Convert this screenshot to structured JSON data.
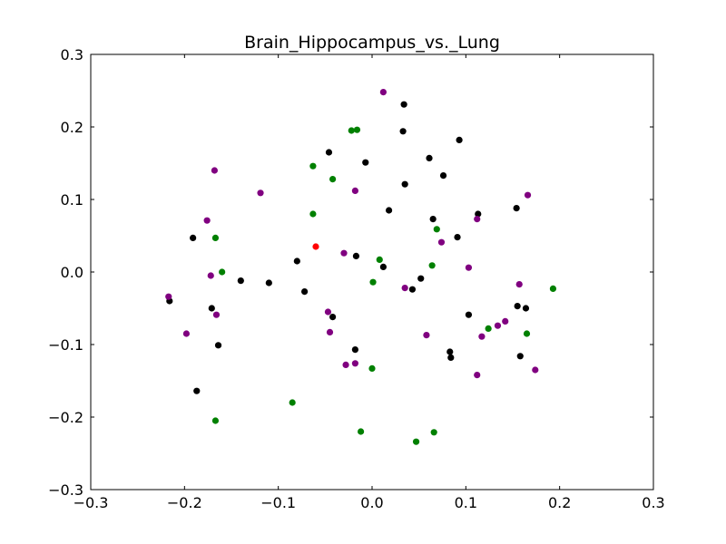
{
  "chart_data": {
    "type": "scatter",
    "title": "Brain_Hippocampus_vs._Lung",
    "xlabel": "",
    "ylabel": "",
    "xlim": [
      -0.3,
      0.3
    ],
    "ylim": [
      -0.3,
      0.3
    ],
    "xticks": [
      -0.3,
      -0.2,
      -0.1,
      0.0,
      0.1,
      0.2,
      0.3
    ],
    "yticks": [
      -0.3,
      -0.2,
      -0.1,
      0.0,
      0.1,
      0.2,
      0.3
    ],
    "xtick_labels": [
      "−0.3",
      "−0.2",
      "−0.1",
      "0.0",
      "0.1",
      "0.2",
      "0.3"
    ],
    "ytick_labels": [
      "−0.3",
      "−0.2",
      "−0.1",
      "0.0",
      "0.1",
      "0.2",
      "0.3"
    ],
    "grid": false,
    "legend": "none",
    "series": [
      {
        "color": "#000000",
        "points": [
          [
            0.034,
            0.231
          ],
          [
            0.033,
            0.194
          ],
          [
            0.093,
            0.182
          ],
          [
            -0.046,
            0.165
          ],
          [
            0.061,
            0.157
          ],
          [
            -0.007,
            0.151
          ],
          [
            0.076,
            0.133
          ],
          [
            0.035,
            0.121
          ],
          [
            0.018,
            0.085
          ],
          [
            0.113,
            0.08
          ],
          [
            0.154,
            0.088
          ],
          [
            0.065,
            0.073
          ],
          [
            -0.191,
            0.047
          ],
          [
            0.091,
            0.048
          ],
          [
            -0.017,
            0.022
          ],
          [
            -0.08,
            0.015
          ],
          [
            0.012,
            0.007
          ],
          [
            -0.14,
            -0.012
          ],
          [
            -0.11,
            -0.015
          ],
          [
            0.052,
            -0.009
          ],
          [
            0.043,
            -0.024
          ],
          [
            -0.072,
            -0.027
          ],
          [
            -0.216,
            -0.04
          ],
          [
            -0.171,
            -0.05
          ],
          [
            0.155,
            -0.047
          ],
          [
            0.164,
            -0.05
          ],
          [
            -0.042,
            -0.062
          ],
          [
            0.103,
            -0.059
          ],
          [
            -0.164,
            -0.101
          ],
          [
            -0.018,
            -0.107
          ],
          [
            0.083,
            -0.11
          ],
          [
            0.084,
            -0.118
          ],
          [
            0.158,
            -0.116
          ],
          [
            -0.187,
            -0.164
          ]
        ]
      },
      {
        "color": "#800080",
        "points": [
          [
            0.012,
            0.248
          ],
          [
            -0.168,
            0.14
          ],
          [
            -0.119,
            0.109
          ],
          [
            -0.018,
            0.112
          ],
          [
            0.166,
            0.106
          ],
          [
            -0.176,
            0.071
          ],
          [
            0.112,
            0.073
          ],
          [
            0.074,
            0.041
          ],
          [
            -0.03,
            0.026
          ],
          [
            -0.172,
            -0.005
          ],
          [
            0.103,
            0.006
          ],
          [
            0.157,
            -0.017
          ],
          [
            0.035,
            -0.022
          ],
          [
            -0.217,
            -0.034
          ],
          [
            -0.166,
            -0.059
          ],
          [
            -0.047,
            -0.055
          ],
          [
            0.142,
            -0.068
          ],
          [
            0.134,
            -0.074
          ],
          [
            -0.045,
            -0.083
          ],
          [
            -0.198,
            -0.085
          ],
          [
            0.058,
            -0.087
          ],
          [
            0.117,
            -0.089
          ],
          [
            -0.028,
            -0.128
          ],
          [
            -0.018,
            -0.126
          ],
          [
            0.174,
            -0.135
          ],
          [
            0.112,
            -0.142
          ]
        ]
      },
      {
        "color": "#008000",
        "points": [
          [
            -0.016,
            0.196
          ],
          [
            -0.022,
            0.195
          ],
          [
            -0.063,
            0.146
          ],
          [
            -0.042,
            0.128
          ],
          [
            -0.063,
            0.08
          ],
          [
            0.069,
            0.059
          ],
          [
            -0.167,
            0.047
          ],
          [
            0.008,
            0.017
          ],
          [
            0.064,
            0.009
          ],
          [
            -0.16,
            0.0
          ],
          [
            0.001,
            -0.014
          ],
          [
            0.193,
            -0.023
          ],
          [
            0.124,
            -0.078
          ],
          [
            0.165,
            -0.085
          ],
          [
            0.0,
            -0.133
          ],
          [
            -0.085,
            -0.18
          ],
          [
            -0.167,
            -0.205
          ],
          [
            -0.012,
            -0.22
          ],
          [
            0.066,
            -0.221
          ],
          [
            0.047,
            -0.234
          ]
        ]
      },
      {
        "color": "#ff0000",
        "points": [
          [
            -0.06,
            0.035
          ]
        ]
      }
    ]
  }
}
